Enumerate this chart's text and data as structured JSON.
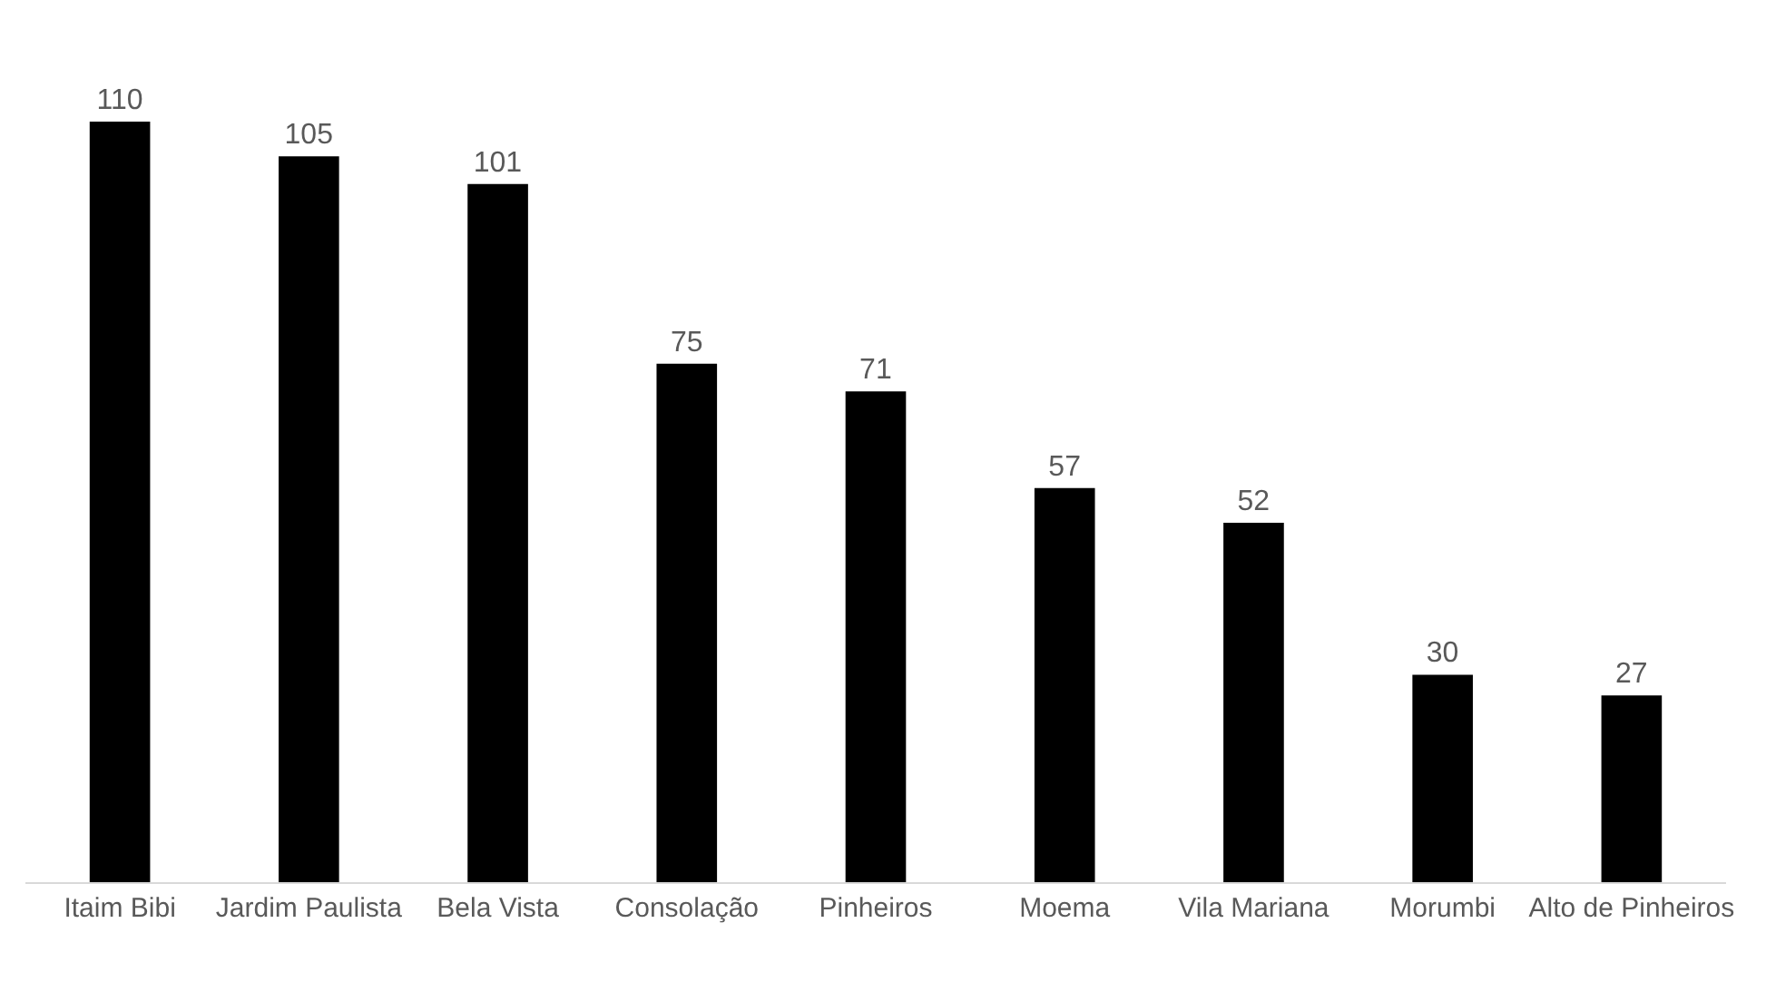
{
  "chart_data": {
    "type": "bar",
    "categories": [
      "Itaim Bibi",
      "Jardim Paulista",
      "Bela Vista",
      "Consolação",
      "Pinheiros",
      "Moema",
      "Vila Mariana",
      "Morumbi",
      "Alto de Pinheiros"
    ],
    "values": [
      110,
      105,
      101,
      75,
      71,
      57,
      52,
      30,
      27
    ],
    "color": "#000000",
    "data_labels": true
  }
}
